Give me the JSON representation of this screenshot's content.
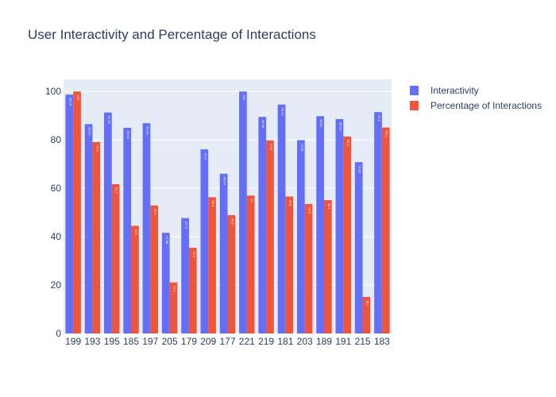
{
  "chart_data": {
    "type": "bar",
    "title": "User Interactivity and Percentage of Interactions",
    "xlabel": "",
    "ylabel": "",
    "categories": [
      "199",
      "193",
      "195",
      "185",
      "197",
      "205",
      "179",
      "209",
      "177",
      "221",
      "219",
      "181",
      "203",
      "189",
      "191",
      "215",
      "183"
    ],
    "series": [
      {
        "name": "Interactivity",
        "color": "#636efa",
        "values": [
          98.7,
          86.5,
          91.3,
          85.0,
          86.9,
          41.6,
          47.7,
          76.1,
          66.0,
          100.0,
          89.5,
          94.6,
          79.9,
          89.8,
          88.6,
          70.8,
          91.5
        ],
        "labels": [
          "98.74",
          "86.51",
          "91.28",
          "85.01",
          "86.94",
          "41.58",
          "47.71",
          "76.07",
          "66.04",
          "100",
          "89.46",
          "94.61",
          "79.89",
          "89.81",
          "88.59",
          "70.81",
          "91.5"
        ]
      },
      {
        "name": "Percentage of Interactions",
        "color": "#ef553b",
        "values": [
          100.0,
          79.1,
          61.7,
          44.5,
          52.9,
          21.1,
          35.4,
          56.3,
          48.9,
          57.0,
          79.8,
          56.6,
          53.5,
          55.1,
          81.4,
          15.1,
          85.1
        ],
        "labels": [
          "100",
          "79.1",
          "61.7",
          "44.5",
          "52.9",
          "21.1",
          "35.4",
          "56.3",
          "48.9",
          "57",
          "79.8",
          "56.6",
          "53.5",
          "55.1",
          "81.4",
          "15.1",
          "85.1"
        ]
      }
    ],
    "yticks": [
      0,
      20,
      40,
      60,
      80,
      100
    ],
    "ylim": [
      0,
      105
    ],
    "grid": true,
    "legend_position": "top-right",
    "plot_bgcolor": "#e5ecf6",
    "grid_color": "#ffffff",
    "text_color": "#2a3f5f"
  }
}
